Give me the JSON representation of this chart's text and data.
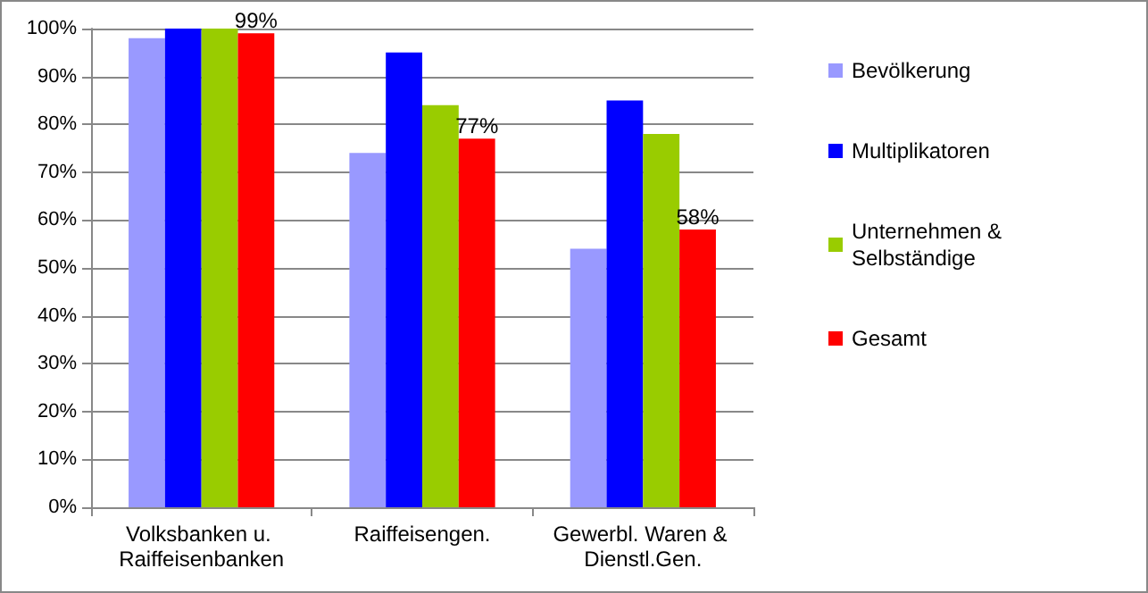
{
  "chart_data": {
    "type": "bar",
    "categories": [
      "Volksbanken u. Raiffeisenbanken",
      "Raiffeisengen.",
      "Gewerbl. Waren & Dienstl.Gen."
    ],
    "series": [
      {
        "name": "Bevölkerung",
        "color": "#9999ff",
        "values": [
          98,
          74,
          54
        ]
      },
      {
        "name": "Multiplikatoren",
        "color": "#0000ff",
        "values": [
          100,
          95,
          85
        ]
      },
      {
        "name": "Unternehmen & Selbständige",
        "color": "#99cc00",
        "values": [
          100,
          84,
          78
        ]
      },
      {
        "name": "Gesamt",
        "color": "#ff0000",
        "values": [
          99,
          77,
          58
        ],
        "value_labels": [
          "99%",
          "77%",
          "58%"
        ]
      }
    ],
    "ylim": [
      0,
      100
    ],
    "yticks": [
      {
        "value": 0,
        "label": "0%"
      },
      {
        "value": 10,
        "label": "10%"
      },
      {
        "value": 20,
        "label": "20%"
      },
      {
        "value": 30,
        "label": "30%"
      },
      {
        "value": 40,
        "label": "40%"
      },
      {
        "value": 50,
        "label": "50%"
      },
      {
        "value": 60,
        "label": "60%"
      },
      {
        "value": 70,
        "label": "70%"
      },
      {
        "value": 80,
        "label": "80%"
      },
      {
        "value": 90,
        "label": "90%"
      },
      {
        "value": 100,
        "label": "100%"
      }
    ],
    "grid": "y",
    "legend": "right"
  }
}
